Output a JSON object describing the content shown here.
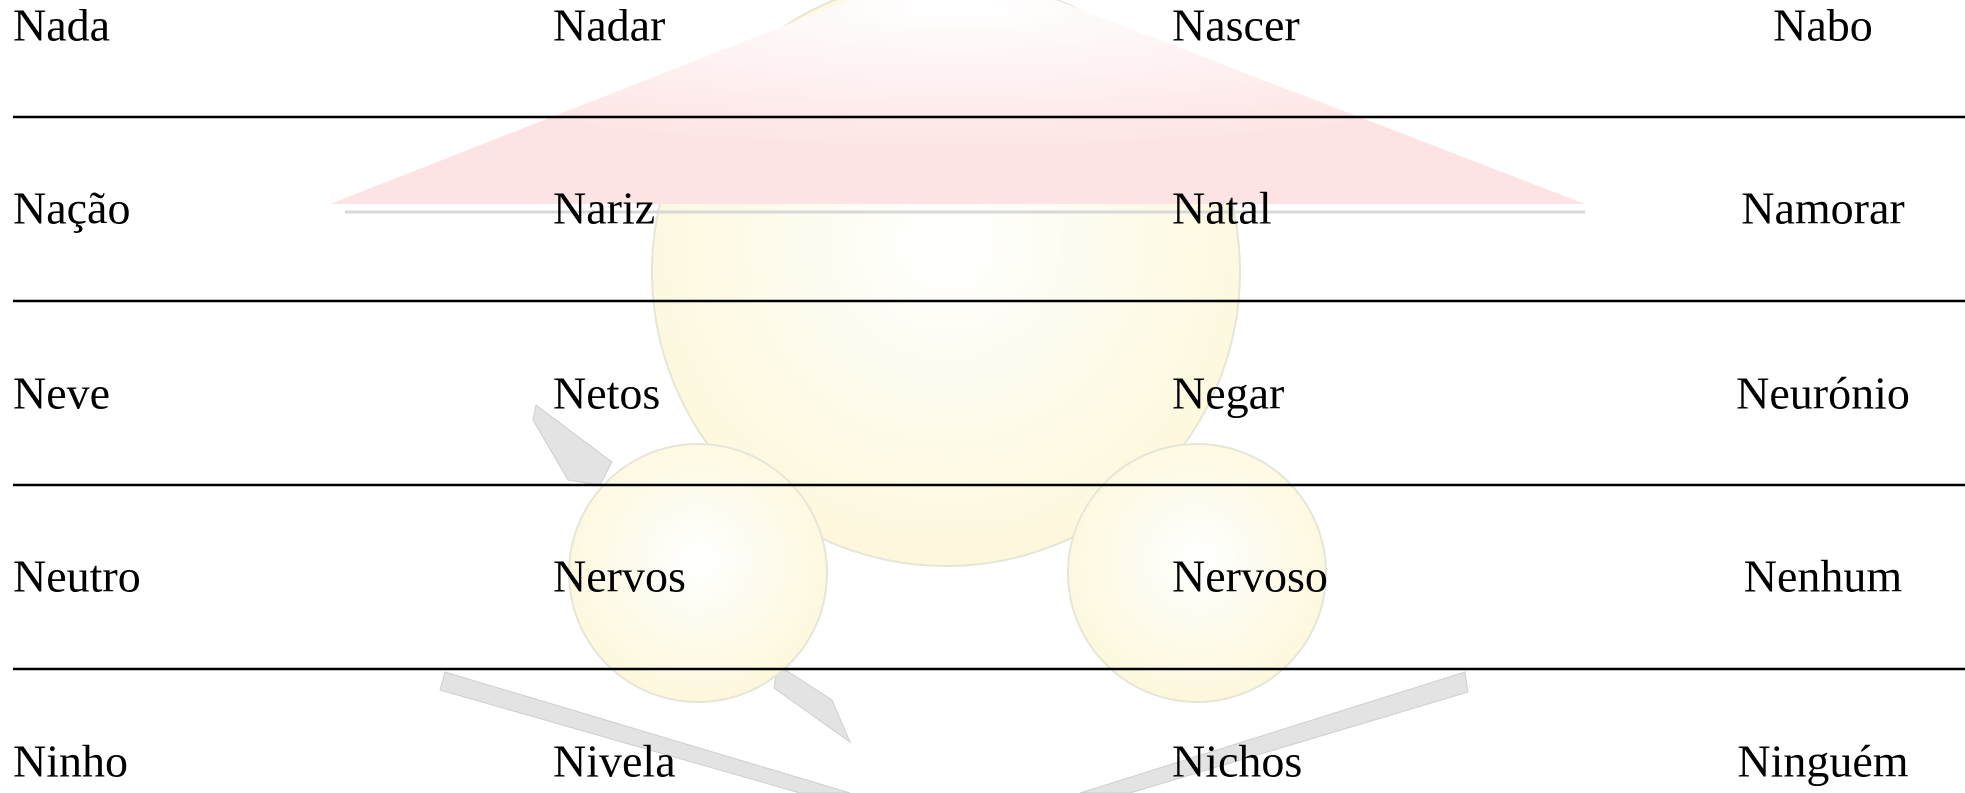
{
  "table": {
    "rows": [
      [
        "Nada",
        "Nadar",
        "Nascer",
        "Nabo"
      ],
      [
        "Nação",
        "Nariz",
        "Natal",
        "Namorar"
      ],
      [
        "Neve",
        "Netos",
        "Negar",
        "Neurónio"
      ],
      [
        "Neutro",
        "Nervos",
        "Nervoso",
        "Nenhum"
      ],
      [
        "Ninho",
        "Nivela",
        "Nichos",
        "Ninguém"
      ]
    ]
  }
}
